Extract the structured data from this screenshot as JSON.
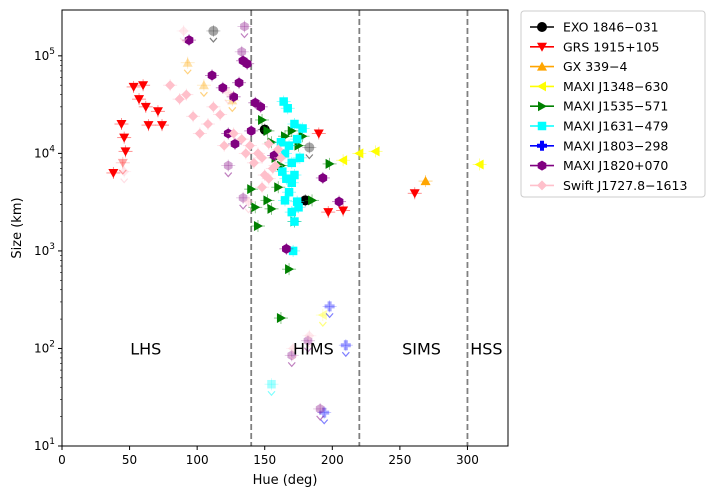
{
  "chart_data": {
    "type": "scatter",
    "title": "",
    "xlabel": "Hue (deg)",
    "ylabel": "Size (km)",
    "xlim": [
      0,
      330
    ],
    "ylim_log10": [
      1,
      5.47
    ],
    "x_ticks": [
      {
        "value": 0,
        "label": "0"
      },
      {
        "value": 50,
        "label": "50"
      },
      {
        "value": 100,
        "label": "100"
      },
      {
        "value": 150,
        "label": "150"
      },
      {
        "value": 200,
        "label": "200"
      },
      {
        "value": 250,
        "label": "250"
      },
      {
        "value": 300,
        "label": "300"
      }
    ],
    "y_ticks": [
      {
        "value": 10,
        "label_base": "10",
        "label_exp": "1"
      },
      {
        "value": 100,
        "label_base": "10",
        "label_exp": "2"
      },
      {
        "value": 1000,
        "label_base": "10",
        "label_exp": "3"
      },
      {
        "value": 10000,
        "label_base": "10",
        "label_exp": "4"
      },
      {
        "value": 100000,
        "label_base": "10",
        "label_exp": "5"
      }
    ],
    "state_boundaries": [
      140,
      220,
      300
    ],
    "state_labels": [
      {
        "text": "LHS",
        "x": 62,
        "y": 100
      },
      {
        "text": "HIMS",
        "x": 186,
        "y": 100
      },
      {
        "text": "SIMS",
        "x": 266,
        "y": 100
      },
      {
        "text": "HSS",
        "x": 314,
        "y": 100
      }
    ],
    "legend_position": "outside-top-right",
    "series": [
      {
        "name": "EXO 1846−031",
        "color": "#000000",
        "marker": "circle",
        "points": [
          {
            "x": 150,
            "y": 17500
          },
          {
            "x": 180,
            "y": 3300
          },
          {
            "x": 112,
            "y": 180000,
            "ul": true
          },
          {
            "x": 183,
            "y": 11500,
            "ul": true
          }
        ]
      },
      {
        "name": "GRS 1915+105",
        "color": "#ff0000",
        "marker": "triangle-down",
        "points": [
          {
            "x": 38,
            "y": 6300
          },
          {
            "x": 44,
            "y": 20000
          },
          {
            "x": 46,
            "y": 14500
          },
          {
            "x": 47,
            "y": 10500
          },
          {
            "x": 53,
            "y": 48000
          },
          {
            "x": 57,
            "y": 36000
          },
          {
            "x": 60,
            "y": 50000
          },
          {
            "x": 62,
            "y": 30000
          },
          {
            "x": 64,
            "y": 19500
          },
          {
            "x": 71,
            "y": 27000
          },
          {
            "x": 74,
            "y": 19500
          },
          {
            "x": 190,
            "y": 16000
          },
          {
            "x": 197,
            "y": 2500
          },
          {
            "x": 208,
            "y": 2600
          },
          {
            "x": 261,
            "y": 3900
          },
          {
            "x": 45,
            "y": 8000,
            "ul": true
          }
        ]
      },
      {
        "name": "GX 339−4",
        "color": "#ffa500",
        "marker": "triangle-up",
        "points": [
          {
            "x": 269,
            "y": 5200
          },
          {
            "x": 93,
            "y": 85000,
            "ul": true
          },
          {
            "x": 105,
            "y": 50000,
            "ul": true
          },
          {
            "x": 126,
            "y": 35000,
            "ul": true
          }
        ]
      },
      {
        "name": "MAXI J1348−630",
        "color": "#ffff00",
        "marker": "triangle-left",
        "points": [
          {
            "x": 208,
            "y": 8500
          },
          {
            "x": 220,
            "y": 10000
          },
          {
            "x": 232,
            "y": 10500
          },
          {
            "x": 309,
            "y": 7700
          },
          {
            "x": 193,
            "y": 220,
            "ul": true
          }
        ]
      },
      {
        "name": "MAXI J1535−571",
        "color": "#008000",
        "marker": "triangle-right",
        "points": [
          {
            "x": 148,
            "y": 22000
          },
          {
            "x": 152,
            "y": 17000
          },
          {
            "x": 155,
            "y": 13000
          },
          {
            "x": 158,
            "y": 9000
          },
          {
            "x": 162,
            "y": 7500
          },
          {
            "x": 165,
            "y": 15000
          },
          {
            "x": 170,
            "y": 17000
          },
          {
            "x": 175,
            "y": 12000
          },
          {
            "x": 178,
            "y": 15000
          },
          {
            "x": 160,
            "y": 4500
          },
          {
            "x": 152,
            "y": 3300
          },
          {
            "x": 155,
            "y": 2700
          },
          {
            "x": 143,
            "y": 2800
          },
          {
            "x": 145,
            "y": 1800
          },
          {
            "x": 168,
            "y": 650
          },
          {
            "x": 162,
            "y": 205
          },
          {
            "x": 172,
            "y": 2000
          },
          {
            "x": 185,
            "y": 3300
          },
          {
            "x": 198,
            "y": 7800
          },
          {
            "x": 140,
            "y": 4300
          }
        ]
      },
      {
        "name": "MAXI J1631−479",
        "color": "#00ffff",
        "marker": "square",
        "points": [
          {
            "x": 164,
            "y": 34000
          },
          {
            "x": 167,
            "y": 29000
          },
          {
            "x": 172,
            "y": 20000
          },
          {
            "x": 178,
            "y": 18000
          },
          {
            "x": 162,
            "y": 13000
          },
          {
            "x": 165,
            "y": 10000
          },
          {
            "x": 168,
            "y": 12000
          },
          {
            "x": 170,
            "y": 8000
          },
          {
            "x": 174,
            "y": 14000
          },
          {
            "x": 176,
            "y": 9000
          },
          {
            "x": 163,
            "y": 6500
          },
          {
            "x": 166,
            "y": 5500
          },
          {
            "x": 170,
            "y": 5000
          },
          {
            "x": 172,
            "y": 6000
          },
          {
            "x": 168,
            "y": 4000
          },
          {
            "x": 165,
            "y": 3300
          },
          {
            "x": 174,
            "y": 3200
          },
          {
            "x": 170,
            "y": 2500
          },
          {
            "x": 172,
            "y": 2000
          },
          {
            "x": 175,
            "y": 2800
          },
          {
            "x": 171,
            "y": 1000
          },
          {
            "x": 155,
            "y": 43,
            "ul": true
          }
        ]
      },
      {
        "name": "MAXI J1803−298",
        "color": "#0000ff",
        "marker": "plus",
        "points": [
          {
            "x": 198,
            "y": 270,
            "ul": true
          },
          {
            "x": 210,
            "y": 108,
            "ul": true
          },
          {
            "x": 194,
            "y": 22,
            "ul": true
          }
        ]
      },
      {
        "name": "MAXI J1820+070",
        "color": "#800080",
        "marker": "hexagon",
        "points": [
          {
            "x": 94,
            "y": 145000
          },
          {
            "x": 111,
            "y": 63000
          },
          {
            "x": 119,
            "y": 47000
          },
          {
            "x": 127,
            "y": 38000
          },
          {
            "x": 131,
            "y": 53000
          },
          {
            "x": 134,
            "y": 89000
          },
          {
            "x": 137,
            "y": 83000
          },
          {
            "x": 143,
            "y": 33000
          },
          {
            "x": 147,
            "y": 30000
          },
          {
            "x": 140,
            "y": 17000
          },
          {
            "x": 123,
            "y": 16000
          },
          {
            "x": 128,
            "y": 12500
          },
          {
            "x": 157,
            "y": 9500
          },
          {
            "x": 166,
            "y": 1050
          },
          {
            "x": 193,
            "y": 5600
          },
          {
            "x": 205,
            "y": 3200
          },
          {
            "x": 133,
            "y": 110000,
            "ul": true
          },
          {
            "x": 135,
            "y": 200000,
            "ul": true
          },
          {
            "x": 123,
            "y": 7500,
            "ul": true
          },
          {
            "x": 134,
            "y": 3500,
            "ul": true
          },
          {
            "x": 182,
            "y": 120,
            "ul": true
          },
          {
            "x": 170,
            "y": 85,
            "ul": true
          },
          {
            "x": 191,
            "y": 24,
            "ul": true
          }
        ]
      },
      {
        "name": "Swift J1727.8−1613",
        "color": "#ffc0cb",
        "marker": "diamond",
        "points": [
          {
            "x": 80,
            "y": 50000
          },
          {
            "x": 87,
            "y": 36000
          },
          {
            "x": 92,
            "y": 40000
          },
          {
            "x": 97,
            "y": 24000
          },
          {
            "x": 102,
            "y": 16000
          },
          {
            "x": 108,
            "y": 20000
          },
          {
            "x": 112,
            "y": 30000
          },
          {
            "x": 117,
            "y": 25000
          },
          {
            "x": 120,
            "y": 12000
          },
          {
            "x": 127,
            "y": 16000
          },
          {
            "x": 133,
            "y": 14000
          },
          {
            "x": 136,
            "y": 10000
          },
          {
            "x": 139,
            "y": 12000
          },
          {
            "x": 142,
            "y": 8000
          },
          {
            "x": 145,
            "y": 10000
          },
          {
            "x": 148,
            "y": 9000
          },
          {
            "x": 150,
            "y": 6000
          },
          {
            "x": 153,
            "y": 12500
          },
          {
            "x": 156,
            "y": 7000
          },
          {
            "x": 148,
            "y": 4500
          },
          {
            "x": 153,
            "y": 5500
          },
          {
            "x": 158,
            "y": 7500
          },
          {
            "x": 160,
            "y": 11000
          },
          {
            "x": 162,
            "y": 9000
          },
          {
            "x": 90,
            "y": 180000,
            "ul": true
          },
          {
            "x": 123,
            "y": 42000,
            "ul": true
          },
          {
            "x": 46,
            "y": 6500,
            "ul": true
          },
          {
            "x": 138,
            "y": 3200,
            "ul": true
          },
          {
            "x": 171,
            "y": 100,
            "ul": true
          },
          {
            "x": 183,
            "y": 135,
            "ul": true
          }
        ]
      }
    ]
  }
}
